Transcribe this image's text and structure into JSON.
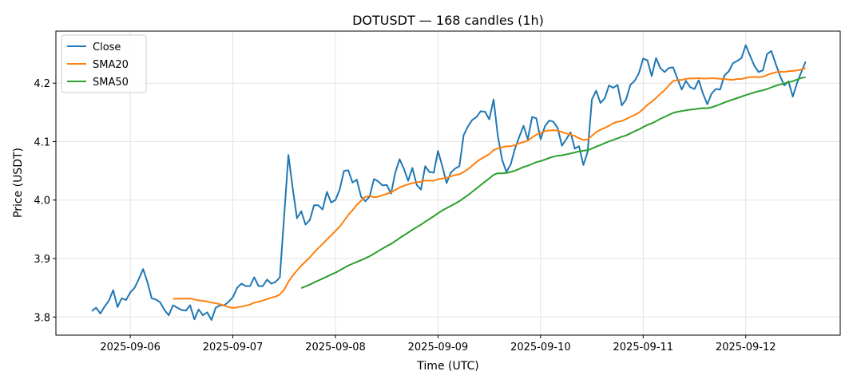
{
  "chart_data": {
    "type": "line",
    "title": "DOTUSDT — 168 candles (1h)",
    "xlabel": "Time (UTC)",
    "ylabel": "Price (USDT)",
    "x_start": "2025-09-05T15:00:00Z",
    "x_interval_hours": 1,
    "xlim_hours_from_start": [
      -8.4,
      175.1
    ],
    "ylim": [
      3.769,
      4.289
    ],
    "yticks": [
      3.8,
      3.9,
      4.0,
      4.1,
      4.2
    ],
    "ytick_labels": [
      "3.8",
      "3.9",
      "4.0",
      "4.1",
      "4.2"
    ],
    "xticks_hours_from_start": [
      9,
      33,
      57,
      81,
      105,
      129,
      153
    ],
    "xtick_labels": [
      "2025-09-06",
      "2025-09-07",
      "2025-09-08",
      "2025-09-09",
      "2025-09-10",
      "2025-09-11",
      "2025-09-12"
    ],
    "grid": true,
    "legend_position": "top-left",
    "series": [
      {
        "name": "Close",
        "color": "#1f77b4",
        "values": [
          3.81,
          3.816,
          3.806,
          3.818,
          3.828,
          3.846,
          3.817,
          3.832,
          3.829,
          3.842,
          3.85,
          3.865,
          3.882,
          3.86,
          3.832,
          3.83,
          3.825,
          3.812,
          3.803,
          3.82,
          3.816,
          3.812,
          3.811,
          3.82,
          3.796,
          3.813,
          3.803,
          3.808,
          3.795,
          3.816,
          3.82,
          3.82,
          3.826,
          3.834,
          3.85,
          3.857,
          3.853,
          3.853,
          3.868,
          3.853,
          3.853,
          3.864,
          3.857,
          3.86,
          3.868,
          3.973,
          4.077,
          4.02,
          3.969,
          3.981,
          3.958,
          3.966,
          3.991,
          3.991,
          3.984,
          4.014,
          3.996,
          4.0,
          4.018,
          4.05,
          4.051,
          4.03,
          4.035,
          4.006,
          3.998,
          4.006,
          4.036,
          4.032,
          4.025,
          4.026,
          4.011,
          4.047,
          4.07,
          4.054,
          4.033,
          4.055,
          4.026,
          4.018,
          4.058,
          4.048,
          4.047,
          4.084,
          4.058,
          4.029,
          4.047,
          4.054,
          4.058,
          4.111,
          4.126,
          4.137,
          4.142,
          4.152,
          4.151,
          4.138,
          4.172,
          4.11,
          4.069,
          4.048,
          4.061,
          4.088,
          4.108,
          4.127,
          4.104,
          4.142,
          4.14,
          4.104,
          4.126,
          4.136,
          4.134,
          4.123,
          4.093,
          4.104,
          4.116,
          4.088,
          4.092,
          4.06,
          4.082,
          4.172,
          4.187,
          4.166,
          4.174,
          4.196,
          4.192,
          4.197,
          4.162,
          4.172,
          4.197,
          4.204,
          4.217,
          4.242,
          4.239,
          4.212,
          4.243,
          4.226,
          4.219,
          4.226,
          4.227,
          4.208,
          4.189,
          4.204,
          4.193,
          4.19,
          4.205,
          4.182,
          4.164,
          4.182,
          4.19,
          4.189,
          4.213,
          4.22,
          4.234,
          4.238,
          4.243,
          4.265,
          4.247,
          4.23,
          4.219,
          4.222,
          4.25,
          4.255,
          4.233,
          4.213,
          4.196,
          4.203,
          4.177,
          4.2,
          4.219,
          4.237
        ]
      },
      {
        "name": "SMA20",
        "color": "#ff7f0e",
        "sma_of": "Close",
        "window": 20
      },
      {
        "name": "SMA50",
        "color": "#2ca02c",
        "sma_of": "Close",
        "window": 50
      }
    ]
  }
}
